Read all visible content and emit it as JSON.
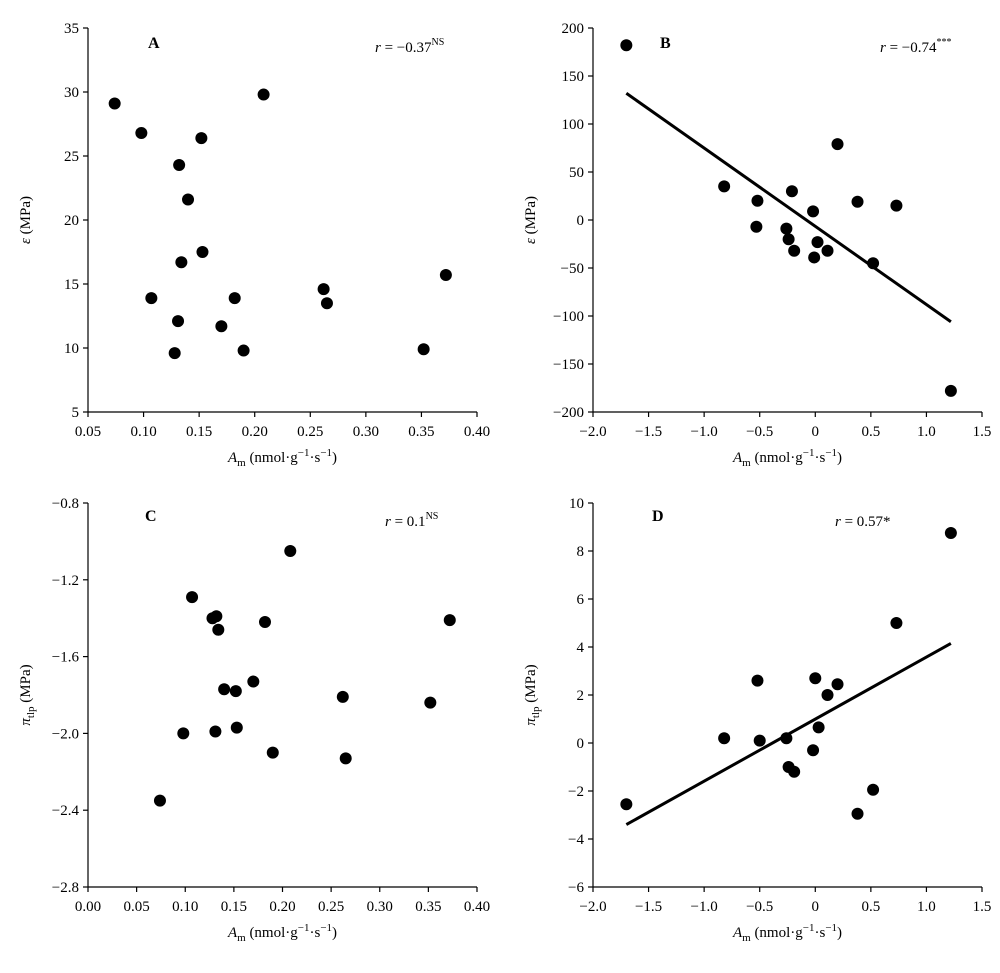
{
  "chart_data": [
    {
      "type": "scatter",
      "panel": "A",
      "stat": {
        "prefix": "r",
        "value": " = −0.37",
        "sup": "NS"
      },
      "xlabel": {
        "main": "A",
        "sub": "m",
        "rest": " (nmol·g",
        "sup1": "−1",
        "mid": "·s",
        "sup2": "−1",
        "end": ")"
      },
      "ylabel": {
        "main": "ε",
        "sub": "",
        "rest": " (MPa)"
      },
      "xlim": [
        0.05,
        0.4
      ],
      "ylim": [
        5,
        35
      ],
      "xticks": [
        0.05,
        0.1,
        0.15,
        0.2,
        0.25,
        0.3,
        0.35,
        0.4
      ],
      "xtick_labels": [
        "0.05",
        "0.10",
        "0.15",
        "0.20",
        "0.25",
        "0.30",
        "0.35",
        "0.40"
      ],
      "yticks": [
        5,
        10,
        15,
        20,
        25,
        30,
        35
      ],
      "ytick_labels": [
        "5",
        "10",
        "15",
        "20",
        "25",
        "30",
        "35"
      ],
      "points": [
        [
          0.074,
          29.1
        ],
        [
          0.098,
          26.8
        ],
        [
          0.107,
          13.9
        ],
        [
          0.128,
          9.6
        ],
        [
          0.131,
          12.1
        ],
        [
          0.132,
          24.3
        ],
        [
          0.134,
          16.7
        ],
        [
          0.14,
          21.6
        ],
        [
          0.152,
          26.4
        ],
        [
          0.153,
          17.5
        ],
        [
          0.17,
          11.7
        ],
        [
          0.182,
          13.9
        ],
        [
          0.19,
          9.8
        ],
        [
          0.208,
          29.8
        ],
        [
          0.262,
          14.6
        ],
        [
          0.265,
          13.5
        ],
        [
          0.352,
          9.9
        ],
        [
          0.372,
          15.7
        ]
      ],
      "fit": null
    },
    {
      "type": "scatter",
      "panel": "B",
      "stat": {
        "prefix": "r",
        "value": " = −0.74",
        "sup": "***"
      },
      "xlabel": {
        "main": "A",
        "sub": "m",
        "rest": " (nmol·g",
        "sup1": "−1",
        "mid": "·s",
        "sup2": "−1",
        "end": ")"
      },
      "ylabel": {
        "main": "ε",
        "sub": "",
        "rest": " (MPa)"
      },
      "xlim": [
        -2.0,
        1.5
      ],
      "ylim": [
        -200,
        200
      ],
      "xticks": [
        -2.0,
        -1.5,
        -1.0,
        -0.5,
        0.0,
        0.5,
        1.0,
        1.5
      ],
      "xtick_labels": [
        "−2.0",
        "−1.5",
        "−1.0",
        "−0.5",
        "0",
        "0.5",
        "1.0",
        "1.5"
      ],
      "yticks": [
        -200,
        -150,
        -100,
        -50,
        0,
        50,
        100,
        150,
        200
      ],
      "ytick_labels": [
        "−200",
        "−150",
        "−100",
        "−50",
        "0",
        "50",
        "100",
        "150",
        "200"
      ],
      "points": [
        [
          -1.7,
          182
        ],
        [
          -0.82,
          35
        ],
        [
          -0.52,
          20
        ],
        [
          -0.53,
          -7
        ],
        [
          -0.26,
          -9
        ],
        [
          -0.24,
          -20
        ],
        [
          -0.21,
          30
        ],
        [
          -0.19,
          -32
        ],
        [
          -0.02,
          9
        ],
        [
          -0.01,
          -39
        ],
        [
          0.02,
          -23
        ],
        [
          0.11,
          -32
        ],
        [
          0.2,
          79
        ],
        [
          0.38,
          19
        ],
        [
          0.52,
          -45
        ],
        [
          0.73,
          15
        ],
        [
          1.22,
          -178
        ]
      ],
      "fit": [
        [
          -1.7,
          132
        ],
        [
          1.22,
          -106
        ]
      ]
    },
    {
      "type": "scatter",
      "panel": "C",
      "stat": {
        "prefix": "r",
        "value": " = 0.1",
        "sup": "NS"
      },
      "xlabel": {
        "main": "A",
        "sub": "m",
        "rest": " (nmol·g",
        "sup1": "−1",
        "mid": "·s",
        "sup2": "−1",
        "end": ")"
      },
      "ylabel": {
        "main": "π",
        "sub": "tlp",
        "rest": " (MPa)"
      },
      "xlim": [
        0.0,
        0.4
      ],
      "ylim": [
        -2.8,
        -0.8
      ],
      "xticks": [
        0.0,
        0.05,
        0.1,
        0.15,
        0.2,
        0.25,
        0.3,
        0.35,
        0.4
      ],
      "xtick_labels": [
        "0.00",
        "0.05",
        "0.10",
        "0.15",
        "0.20",
        "0.25",
        "0.30",
        "0.35",
        "0.40"
      ],
      "yticks": [
        -2.8,
        -2.4,
        -2.0,
        -1.6,
        -1.2,
        -0.8
      ],
      "ytick_labels": [
        "−2.8",
        "−2.4",
        "−2.0",
        "−1.6",
        "−1.2",
        "−0.8"
      ],
      "points": [
        [
          0.074,
          -2.35
        ],
        [
          0.098,
          -2.0
        ],
        [
          0.107,
          -1.29
        ],
        [
          0.128,
          -1.4
        ],
        [
          0.131,
          -1.99
        ],
        [
          0.132,
          -1.39
        ],
        [
          0.134,
          -1.46
        ],
        [
          0.14,
          -1.77
        ],
        [
          0.152,
          -1.78
        ],
        [
          0.153,
          -1.97
        ],
        [
          0.17,
          -1.73
        ],
        [
          0.182,
          -1.42
        ],
        [
          0.19,
          -2.1
        ],
        [
          0.208,
          -1.05
        ],
        [
          0.262,
          -1.81
        ],
        [
          0.265,
          -2.13
        ],
        [
          0.352,
          -1.84
        ],
        [
          0.372,
          -1.41
        ]
      ],
      "fit": null
    },
    {
      "type": "scatter",
      "panel": "D",
      "stat": {
        "prefix": "r",
        "value": " = 0.57*",
        "sup": ""
      },
      "xlabel": {
        "main": "A",
        "sub": "m",
        "rest": " (nmol·g",
        "sup1": "−1",
        "mid": "·s",
        "sup2": "−1",
        "end": ")"
      },
      "ylabel": {
        "main": "π",
        "sub": "tlp",
        "rest": " (MPa)"
      },
      "xlim": [
        -2.0,
        1.5
      ],
      "ylim": [
        -6,
        10
      ],
      "xticks": [
        -2.0,
        -1.5,
        -1.0,
        -0.5,
        0.0,
        0.5,
        1.0,
        1.5
      ],
      "xtick_labels": [
        "−2.0",
        "−1.5",
        "−1.0",
        "−0.5",
        "0",
        "0.5",
        "1.0",
        "1.5"
      ],
      "yticks": [
        -6,
        -4,
        -2,
        0,
        2,
        4,
        6,
        8,
        10
      ],
      "ytick_labels": [
        "−6",
        "−4",
        "−2",
        "0",
        "2",
        "4",
        "6",
        "8",
        "10"
      ],
      "points": [
        [
          -1.7,
          -2.55
        ],
        [
          -0.82,
          0.2
        ],
        [
          -0.52,
          2.6
        ],
        [
          -0.5,
          0.1
        ],
        [
          -0.26,
          0.2
        ],
        [
          -0.24,
          -1.0
        ],
        [
          -0.19,
          -1.2
        ],
        [
          -0.02,
          -0.3
        ],
        [
          0.0,
          2.7
        ],
        [
          0.03,
          0.65
        ],
        [
          0.11,
          2.0
        ],
        [
          0.2,
          2.45
        ],
        [
          0.38,
          -2.95
        ],
        [
          0.52,
          -1.95
        ],
        [
          0.73,
          5.0
        ],
        [
          1.22,
          8.75
        ]
      ],
      "fit": [
        [
          -1.7,
          -3.4
        ],
        [
          1.22,
          4.15
        ]
      ]
    }
  ]
}
